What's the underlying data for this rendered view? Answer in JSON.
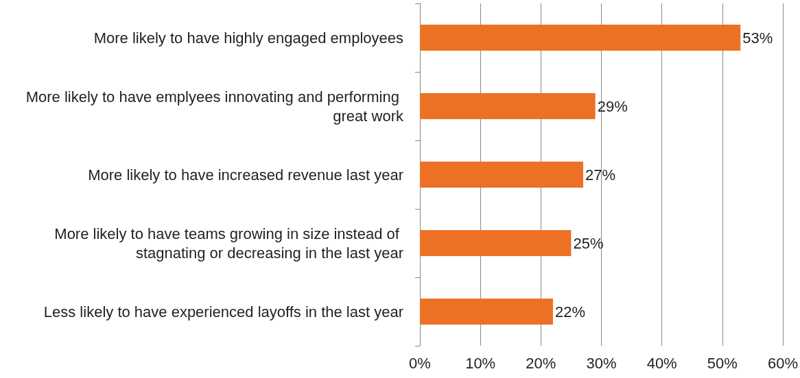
{
  "chart_data": {
    "type": "bar",
    "orientation": "horizontal",
    "categories": [
      "More likely to have highly engaged employees",
      "More likely to have emplyees innovating and performing great work",
      "More likely to have increased revenue last year",
      "More likely to have teams growing in size instead of stagnating or decreasing in the last year",
      "Less likely to have experienced layoffs in the last year"
    ],
    "values": [
      53,
      29,
      27,
      25,
      22
    ],
    "value_labels": [
      "53%",
      "29%",
      "27%",
      "25%",
      "22%"
    ],
    "color": "#ed7125",
    "xlim": [
      0,
      60
    ],
    "xticks": [
      {
        "value": 0,
        "label": "0%"
      },
      {
        "value": 10,
        "label": "10%"
      },
      {
        "value": 20,
        "label": "20%"
      },
      {
        "value": 30,
        "label": "30%"
      },
      {
        "value": 40,
        "label": "40%"
      },
      {
        "value": 50,
        "label": "50%"
      },
      {
        "value": 60,
        "label": "60%"
      }
    ],
    "grid": "x"
  }
}
